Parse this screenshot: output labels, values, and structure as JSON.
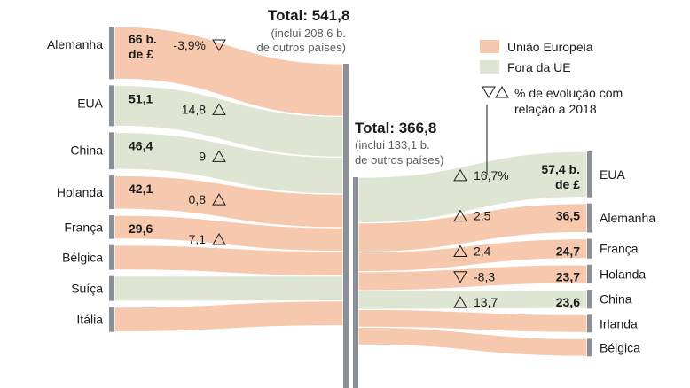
{
  "chart_data": {
    "type": "sankey",
    "unit": "b. de £",
    "colors": {
      "eu": "#f6c8ad",
      "non_eu": "#dfe5d3",
      "bar": "#8a9096"
    },
    "legend": {
      "eu_label": "União Europeia",
      "non_eu_label": "Fora da UE",
      "change_label_line1": "% de evolução com",
      "change_label_line2": "relação a 2018"
    },
    "left_total": {
      "title": "Total: 541,8",
      "note_line1": "(inclui 208,6 b.",
      "note_line2": "de outros países)"
    },
    "right_total": {
      "title": "Total: 366,8",
      "note_line1": "(inclui 133,1 b.",
      "note_line2": "de outros países)"
    },
    "left": [
      {
        "name": "Alemanha",
        "value": 66,
        "label1": "66 b.",
        "label2": "de £",
        "change": "-3,9%",
        "direction": "down",
        "group": "eu"
      },
      {
        "name": "EUA",
        "value": 51.1,
        "label1": "51,1",
        "label2": "",
        "change": "14,8",
        "direction": "up",
        "group": "non_eu"
      },
      {
        "name": "China",
        "value": 46.4,
        "label1": "46,4",
        "label2": "",
        "change": "9",
        "direction": "up",
        "group": "non_eu"
      },
      {
        "name": "Holanda",
        "value": 42.1,
        "label1": "42,1",
        "label2": "",
        "change": "0,8",
        "direction": "up",
        "group": "eu"
      },
      {
        "name": "França",
        "value": 29.6,
        "label1": "29,6",
        "label2": "",
        "change": "7,1",
        "direction": "up",
        "group": "eu"
      },
      {
        "name": "Bélgica",
        "value": null,
        "label1": "",
        "label2": "",
        "change": "",
        "direction": "",
        "group": "eu"
      },
      {
        "name": "Suíça",
        "value": null,
        "label1": "",
        "label2": "",
        "change": "",
        "direction": "",
        "group": "non_eu"
      },
      {
        "name": "Itália",
        "value": null,
        "label1": "",
        "label2": "",
        "change": "",
        "direction": "",
        "group": "eu"
      }
    ],
    "right": [
      {
        "name": "EUA",
        "value": 57.4,
        "label1": "57,4 b.",
        "label2": "de £",
        "change": "16,7%",
        "direction": "up",
        "group": "non_eu"
      },
      {
        "name": "Alemanha",
        "value": 36.5,
        "label1": "36,5",
        "label2": "",
        "change": "2,5",
        "direction": "up",
        "group": "eu"
      },
      {
        "name": "França",
        "value": 24.7,
        "label1": "24,7",
        "label2": "",
        "change": "2,4",
        "direction": "up",
        "group": "eu"
      },
      {
        "name": "Holanda",
        "value": 23.7,
        "label1": "23,7",
        "label2": "",
        "change": "-8,3",
        "direction": "down",
        "group": "eu"
      },
      {
        "name": "China",
        "value": 23.6,
        "label1": "23,6",
        "label2": "",
        "change": "13,7",
        "direction": "up",
        "group": "non_eu"
      },
      {
        "name": "Irlanda",
        "value": null,
        "label1": "",
        "label2": "",
        "change": "",
        "direction": "",
        "group": "eu"
      },
      {
        "name": "Bélgica",
        "value": null,
        "label1": "",
        "label2": "",
        "change": "",
        "direction": "",
        "group": "eu"
      }
    ]
  }
}
